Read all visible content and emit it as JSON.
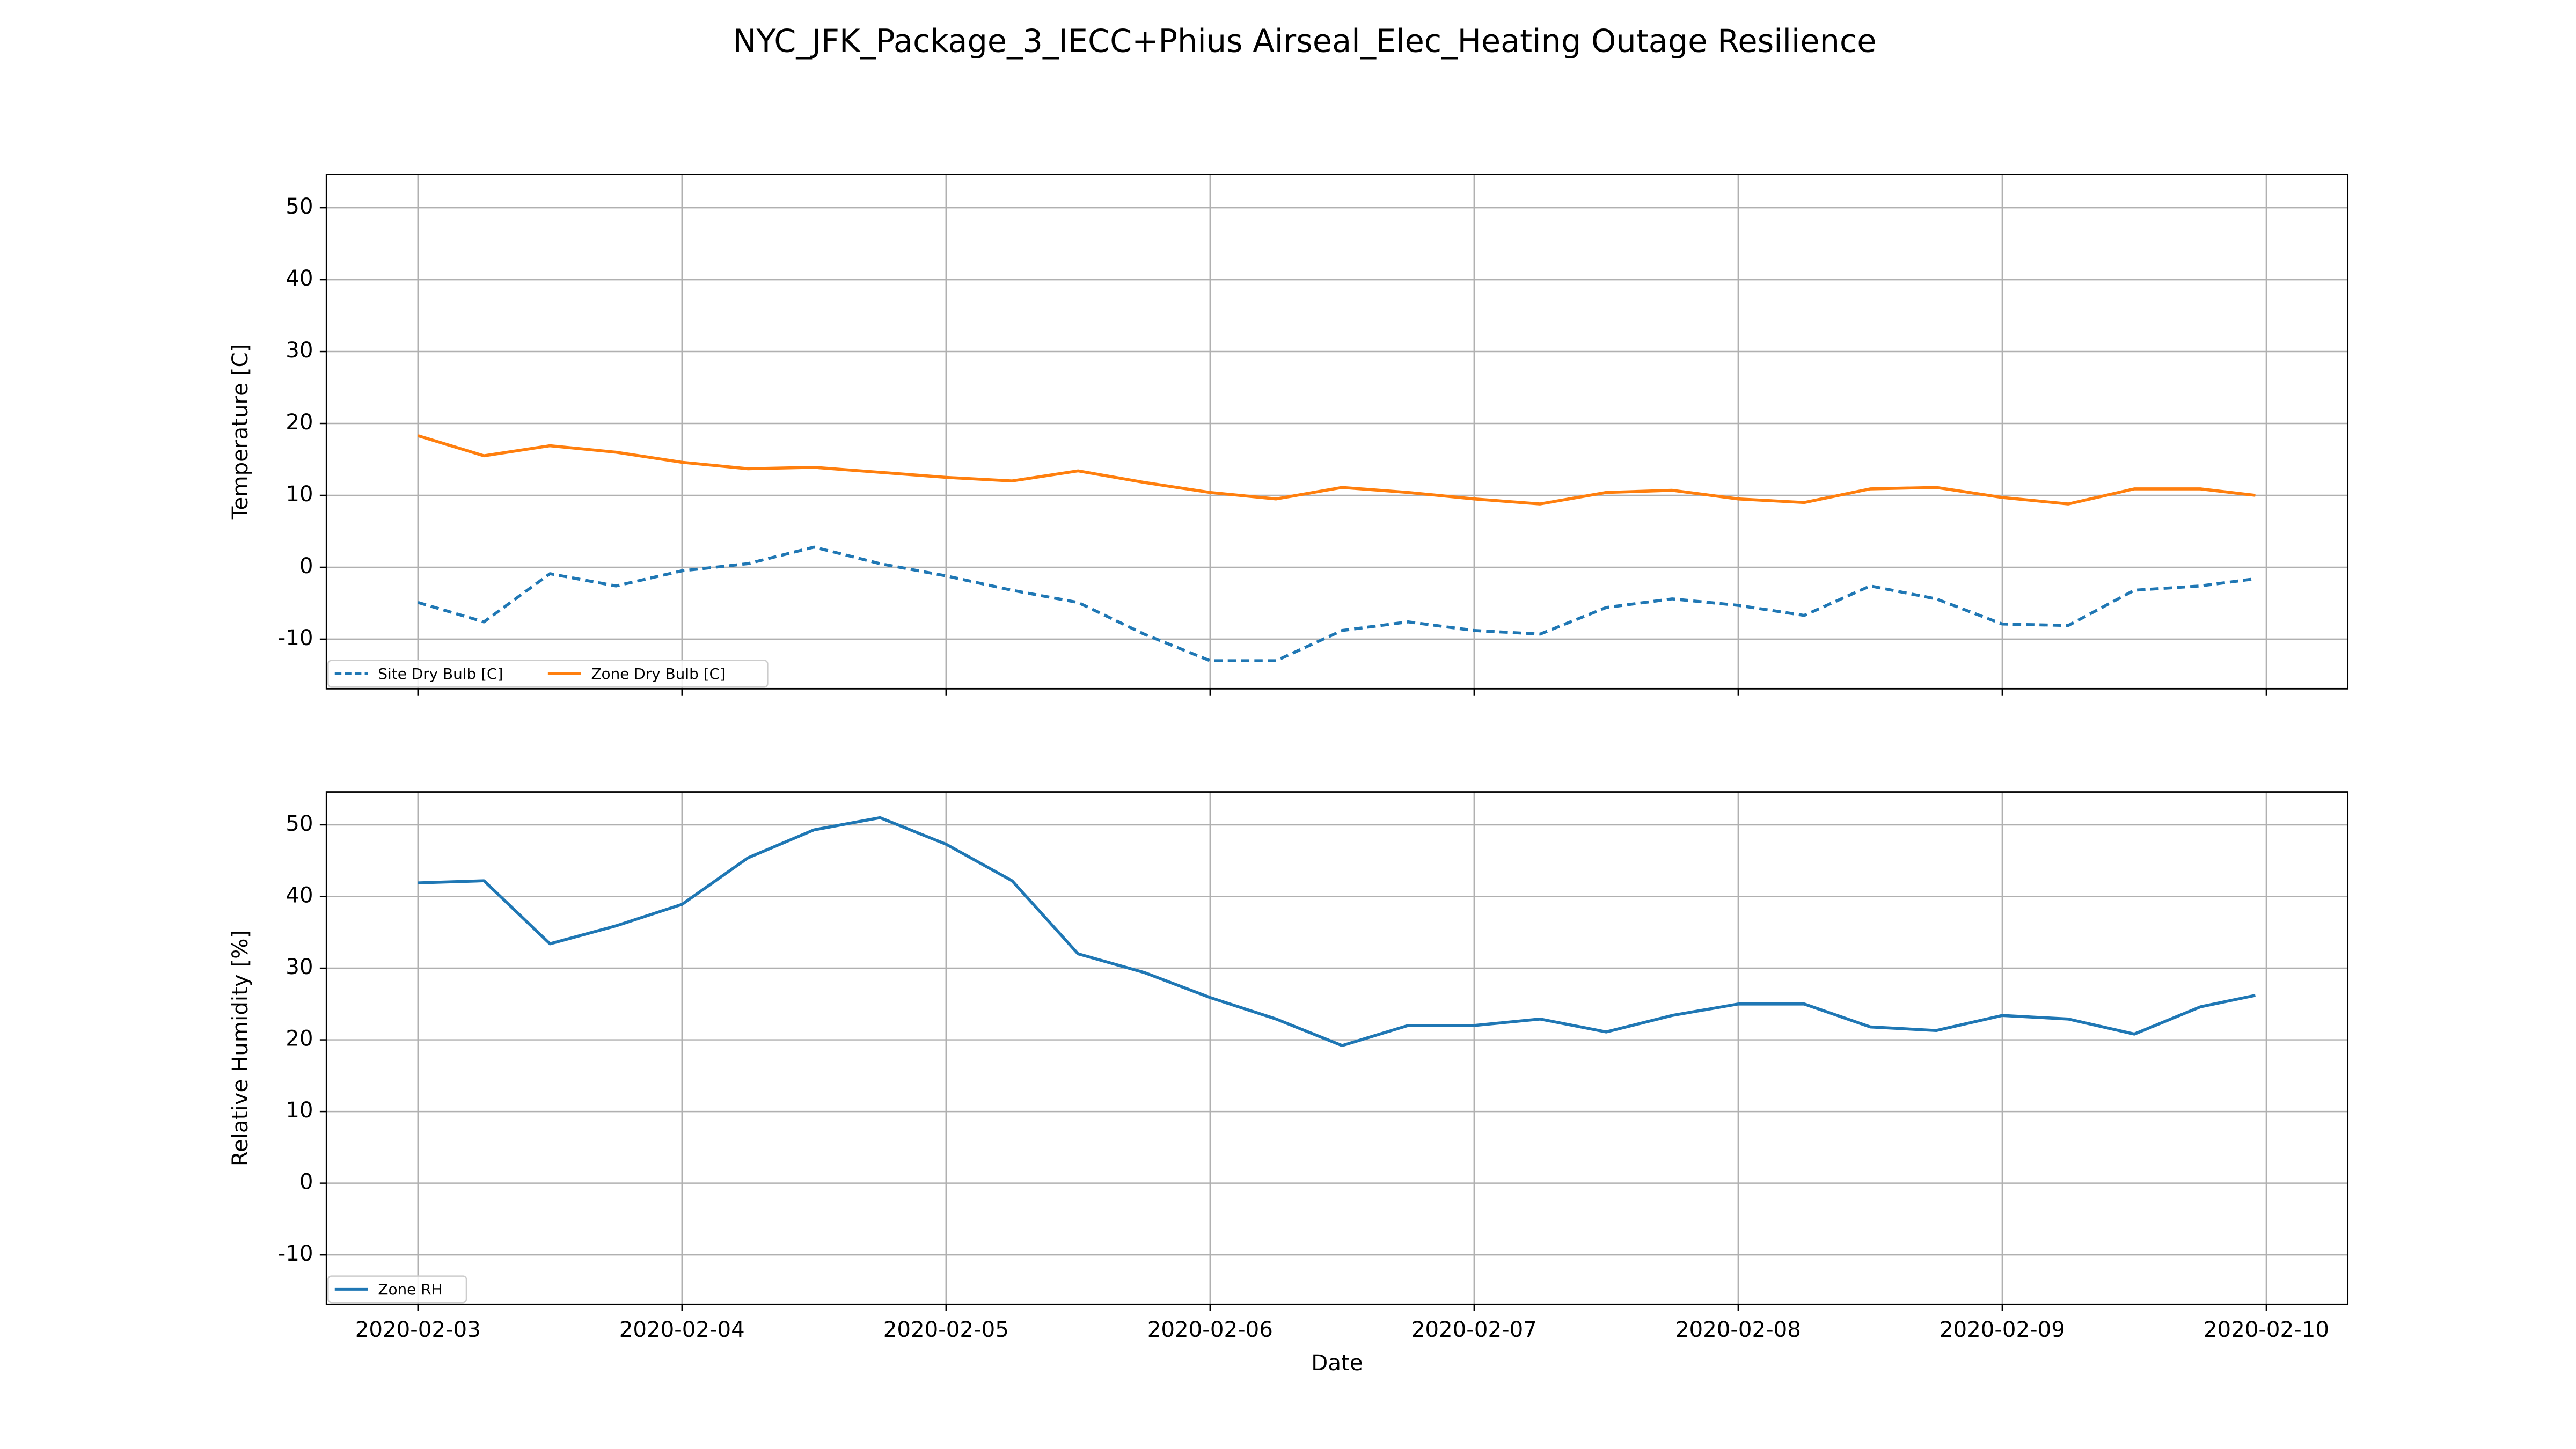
{
  "title": "NYC_JFK_Package_3_IECC+Phius Airseal_Elec_Heating Outage Resilience",
  "chart_data": [
    {
      "type": "line",
      "ylabel": "Temperature [C]",
      "x": [
        "2020-02-03T00:00",
        "2020-02-03T06:00",
        "2020-02-03T12:00",
        "2020-02-03T18:00",
        "2020-02-04T00:00",
        "2020-02-04T06:00",
        "2020-02-04T12:00",
        "2020-02-04T18:00",
        "2020-02-05T00:00",
        "2020-02-05T06:00",
        "2020-02-05T12:00",
        "2020-02-05T18:00",
        "2020-02-06T00:00",
        "2020-02-06T06:00",
        "2020-02-06T12:00",
        "2020-02-06T18:00",
        "2020-02-07T00:00",
        "2020-02-07T06:00",
        "2020-02-07T12:00",
        "2020-02-07T18:00",
        "2020-02-08T00:00",
        "2020-02-08T06:00",
        "2020-02-08T12:00",
        "2020-02-08T18:00",
        "2020-02-09T00:00",
        "2020-02-09T06:00",
        "2020-02-09T12:00",
        "2020-02-09T18:00",
        "2020-02-09T23:00"
      ],
      "series": [
        {
          "name": "Site Dry Bulb [C]",
          "color": "#1f77b4",
          "linestyle": "dashed",
          "values": [
            -4.9,
            -7.6,
            -0.9,
            -2.6,
            -0.5,
            0.5,
            2.8,
            0.5,
            -1.2,
            -3.2,
            -4.9,
            -9.3,
            -13.0,
            -13.0,
            -8.8,
            -7.6,
            -8.8,
            -9.3,
            -5.6,
            -4.4,
            -5.3,
            -6.7,
            -2.6,
            -4.4,
            -7.9,
            -8.1,
            -3.2,
            -2.6,
            -1.6
          ]
        },
        {
          "name": "Zone Dry Bulb [C]",
          "color": "#ff7f0e",
          "linestyle": "solid",
          "values": [
            18.3,
            15.5,
            16.9,
            16.0,
            14.6,
            13.7,
            13.9,
            13.2,
            12.5,
            12.0,
            13.4,
            11.8,
            10.4,
            9.5,
            11.1,
            10.4,
            9.5,
            8.8,
            10.4,
            10.7,
            9.5,
            9.0,
            10.9,
            11.1,
            9.7,
            8.8,
            10.9,
            10.9,
            10.0
          ]
        }
      ],
      "xlim": [
        "2020-02-02T15:41",
        "2020-02-10T07:24"
      ],
      "xticks": [
        "2020-02-03",
        "2020-02-04",
        "2020-02-05",
        "2020-02-06",
        "2020-02-07",
        "2020-02-08",
        "2020-02-09",
        "2020-02-10"
      ],
      "ylim": [
        -16.9,
        54.6
      ],
      "yticks": [
        -10,
        0,
        10,
        20,
        30,
        40,
        50
      ],
      "grid": true,
      "legend": "lower left"
    },
    {
      "type": "line",
      "ylabel": "Relative Humidity [%]",
      "xlabel": "Date",
      "x": [
        "2020-02-03T00:00",
        "2020-02-03T06:00",
        "2020-02-03T12:00",
        "2020-02-03T18:00",
        "2020-02-04T00:00",
        "2020-02-04T06:00",
        "2020-02-04T12:00",
        "2020-02-04T18:00",
        "2020-02-05T00:00",
        "2020-02-05T06:00",
        "2020-02-05T12:00",
        "2020-02-05T18:00",
        "2020-02-06T00:00",
        "2020-02-06T06:00",
        "2020-02-06T12:00",
        "2020-02-06T18:00",
        "2020-02-07T00:00",
        "2020-02-07T06:00",
        "2020-02-07T12:00",
        "2020-02-07T18:00",
        "2020-02-08T00:00",
        "2020-02-08T06:00",
        "2020-02-08T12:00",
        "2020-02-08T18:00",
        "2020-02-09T00:00",
        "2020-02-09T06:00",
        "2020-02-09T12:00",
        "2020-02-09T18:00",
        "2020-02-09T23:00"
      ],
      "series": [
        {
          "name": "Zone RH",
          "color": "#1f77b4",
          "linestyle": "solid",
          "values": [
            41.9,
            42.2,
            33.4,
            35.9,
            38.9,
            45.4,
            49.3,
            51.0,
            47.3,
            42.2,
            32.0,
            29.4,
            25.9,
            22.9,
            19.2,
            22.0,
            22.0,
            22.9,
            21.1,
            23.4,
            25.0,
            25.0,
            21.8,
            21.3,
            23.4,
            22.9,
            20.8,
            24.6,
            26.2
          ]
        }
      ],
      "xlim": [
        "2020-02-02T15:41",
        "2020-02-10T07:24"
      ],
      "xticks": [
        "2020-02-03",
        "2020-02-04",
        "2020-02-05",
        "2020-02-06",
        "2020-02-07",
        "2020-02-08",
        "2020-02-09",
        "2020-02-10"
      ],
      "ylim": [
        -16.9,
        54.6
      ],
      "yticks": [
        -10,
        0,
        10,
        20,
        30,
        40,
        50
      ],
      "grid": true,
      "legend": "lower left"
    }
  ]
}
